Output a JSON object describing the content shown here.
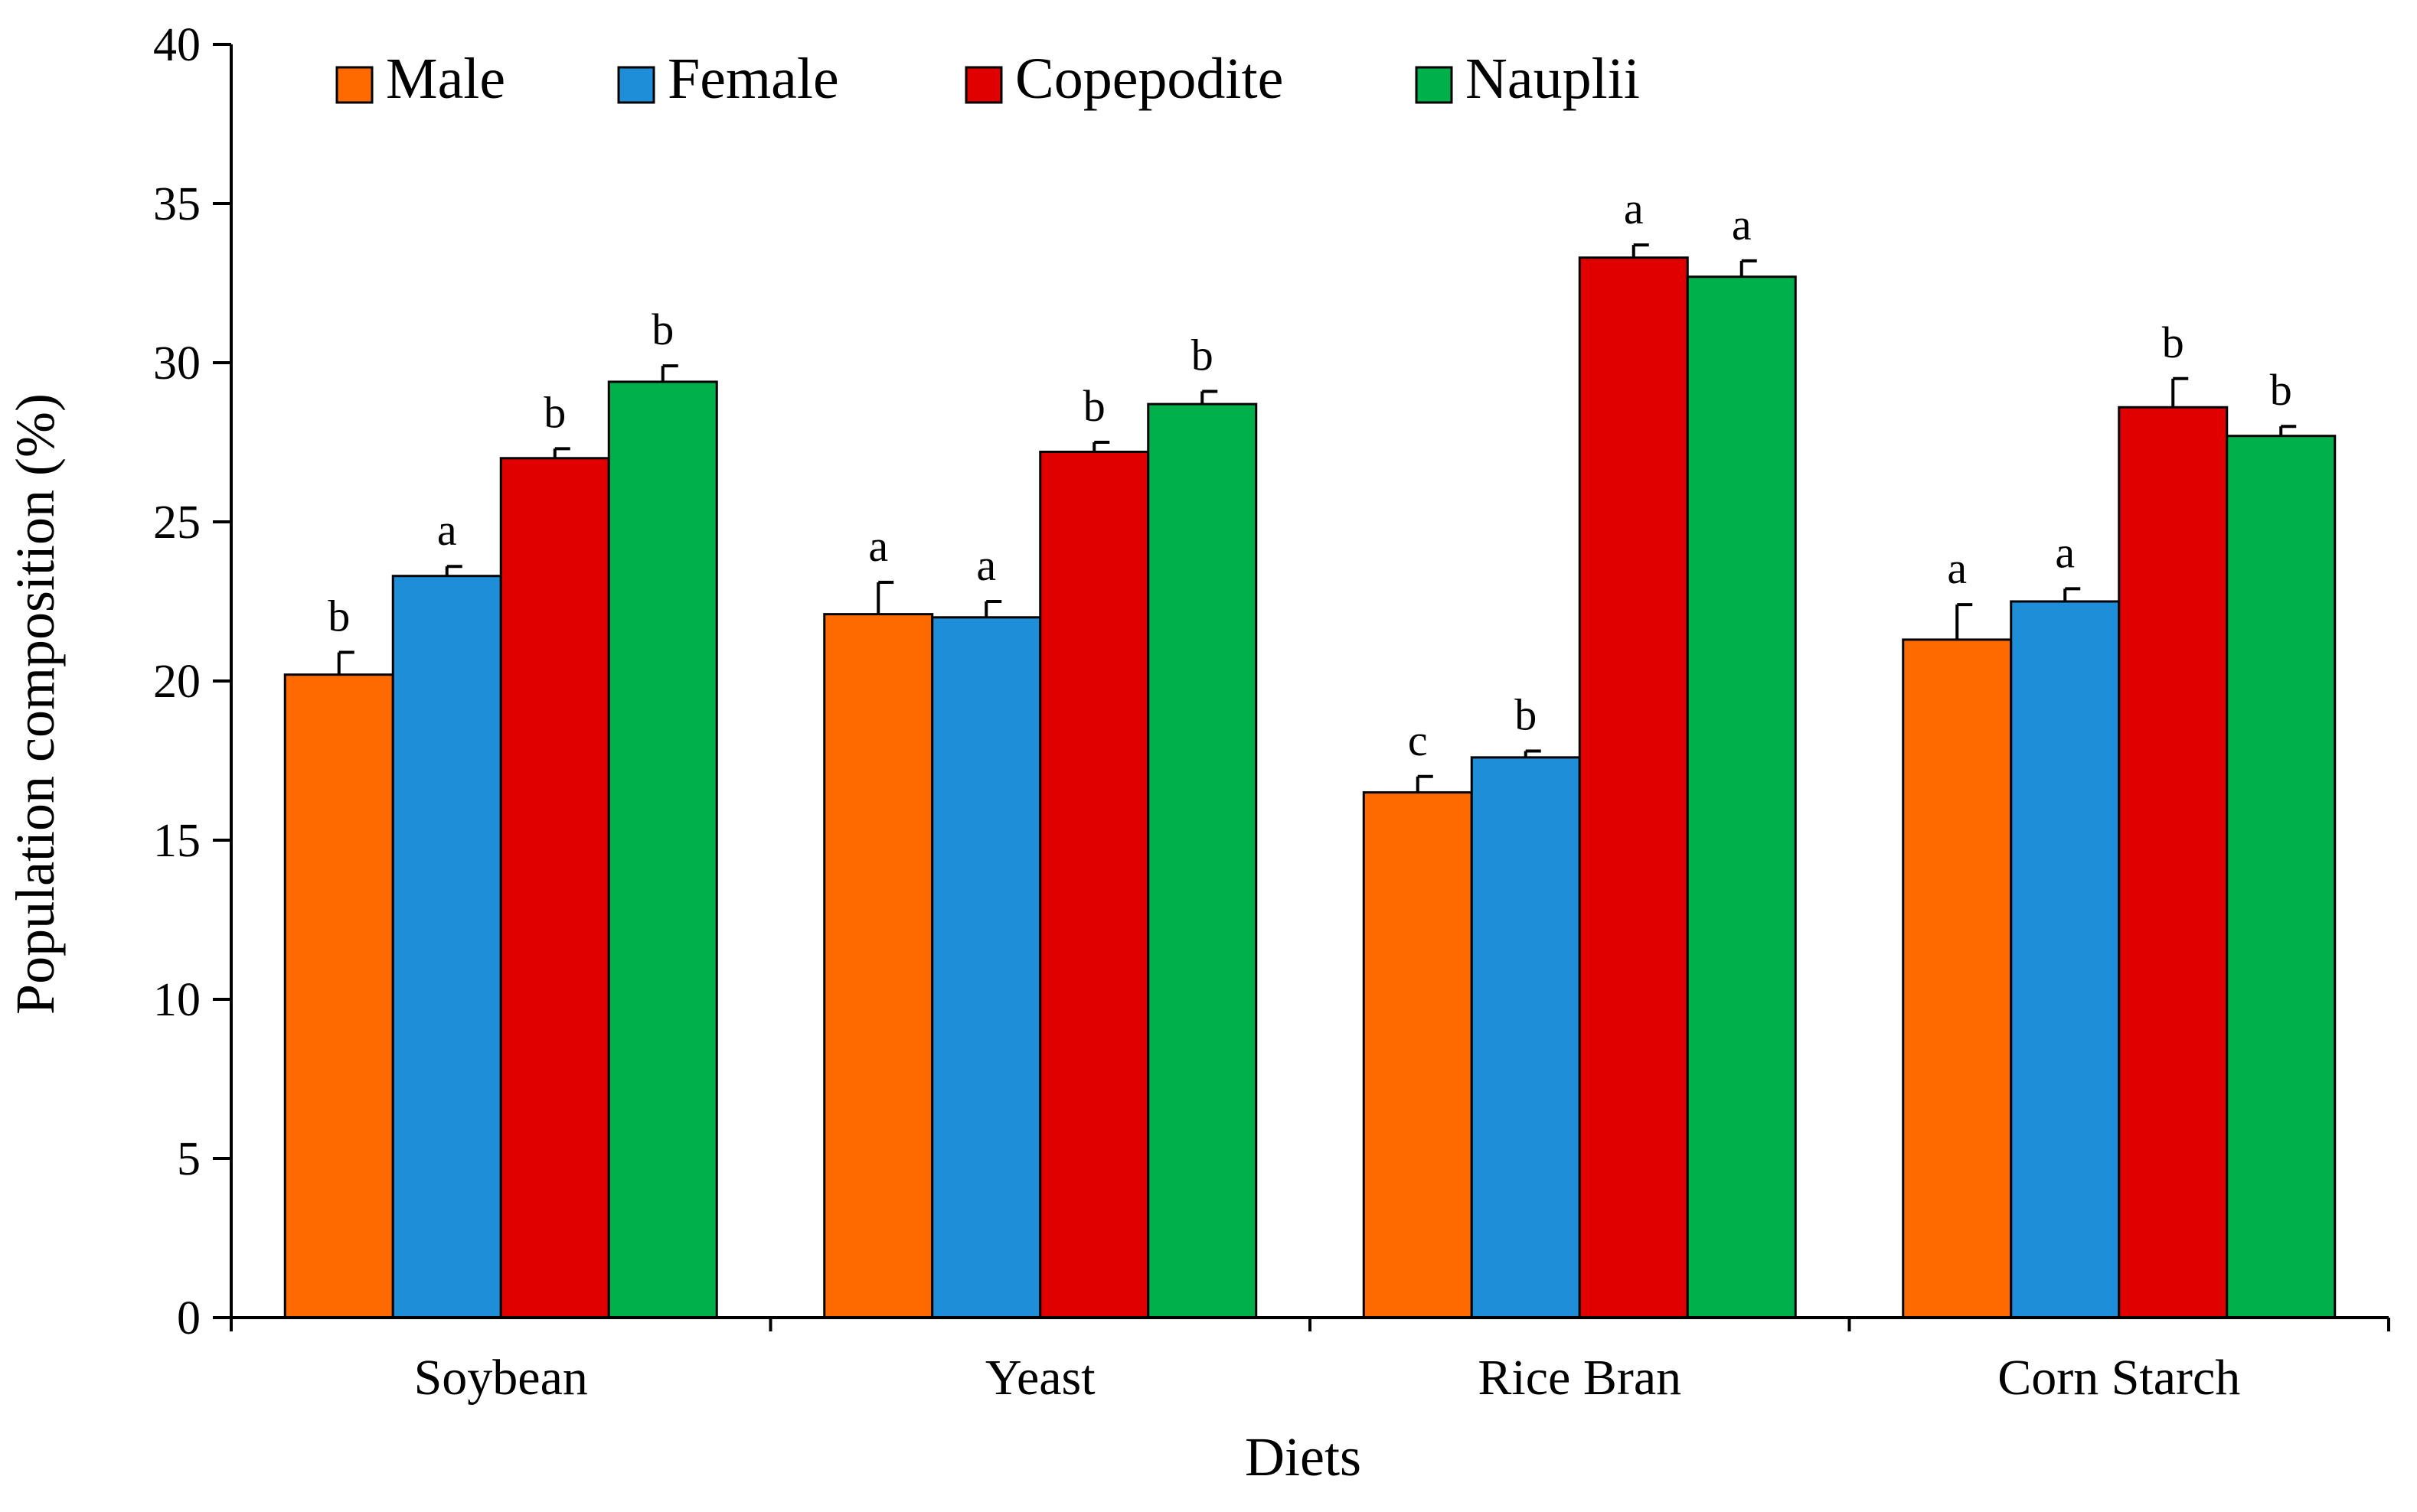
{
  "chart_data": {
    "type": "bar",
    "title": "",
    "xlabel": "Diets",
    "ylabel": "Population composition (%)",
    "ylim": [
      0,
      40
    ],
    "yticks": [
      0,
      5,
      10,
      15,
      20,
      25,
      30,
      35,
      40
    ],
    "grid": false,
    "legend_position": "top-left",
    "categories": [
      "Soybean",
      "Yeast",
      "Rice Bran",
      "Corn Starch"
    ],
    "series": [
      {
        "name": "Male",
        "color": "#ff6a00",
        "values": [
          20.2,
          22.1,
          16.5,
          21.3
        ],
        "errors": [
          0.7,
          1.0,
          0.5,
          1.1
        ],
        "significance": [
          "b",
          "a",
          "c",
          "a"
        ]
      },
      {
        "name": "Female",
        "color": "#1f8ed8",
        "values": [
          23.3,
          22.0,
          17.6,
          22.5
        ],
        "errors": [
          0.3,
          0.5,
          0.2,
          0.4
        ],
        "significance": [
          "a",
          "a",
          "b",
          "a"
        ]
      },
      {
        "name": "Copepodite",
        "color": "#e00000",
        "values": [
          27.0,
          27.2,
          33.3,
          28.6
        ],
        "errors": [
          0.3,
          0.3,
          0.4,
          0.9
        ],
        "significance": [
          "b",
          "b",
          "a",
          "b"
        ]
      },
      {
        "name": "Nauplii",
        "color": "#00b04a",
        "values": [
          29.4,
          28.7,
          32.7,
          27.7
        ],
        "errors": [
          0.5,
          0.4,
          0.5,
          0.3
        ],
        "significance": [
          "b",
          "b",
          "a",
          "b"
        ]
      }
    ]
  }
}
